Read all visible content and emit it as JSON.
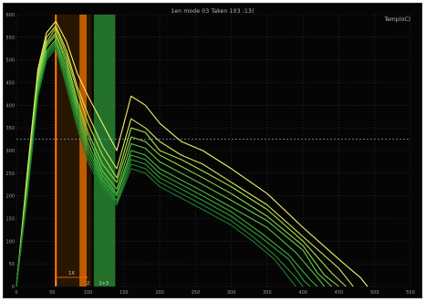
{
  "title": "1en mode 03 Taken 103 :13(",
  "corner_label": "Temp(oC)",
  "colors": {
    "background": "#050505",
    "grid": "#3a3a3a",
    "dashed_line": "#6f7fb0",
    "orange_band": "#ff7a00",
    "dark_band": "#2b1700",
    "green_band": "#2f9e3a",
    "curves": [
      "#f2f26a",
      "#d4e85a",
      "#aee048",
      "#8ed844",
      "#6ccc42",
      "#52c040",
      "#3fb13a",
      "#2f9f36",
      "#248c30",
      "#1f7a2a"
    ]
  },
  "chart_data": {
    "type": "line",
    "xlim": [
      0,
      550
    ],
    "ylim": [
      0,
      600
    ],
    "x_ticks": [
      "0",
      "50",
      "100",
      "150",
      "200",
      "250",
      "300",
      "350",
      "400",
      "450",
      "500",
      "550"
    ],
    "y_ticks": [
      "0",
      "50",
      "100",
      "150",
      "200",
      "250",
      "300",
      "350",
      "400",
      "450",
      "500",
      "550",
      "600"
    ],
    "marker_labels": [
      "1X",
      "1",
      "2",
      "2+3"
    ],
    "reference_level": 325,
    "bands": [
      {
        "x0": 55,
        "x1": 105,
        "color": "dark"
      },
      {
        "x0": 88,
        "x1": 98,
        "color": "orange"
      },
      {
        "x0": 108,
        "x1": 138,
        "color": "green"
      }
    ],
    "series": [
      {
        "x": [
          0,
          15,
          30,
          42,
          55,
          70,
          85,
          100,
          120,
          140,
          160,
          180,
          200,
          230,
          260,
          300,
          350,
          400,
          450,
          480,
          490
        ],
        "values": [
          0,
          250,
          480,
          560,
          585,
          540,
          470,
          420,
          360,
          300,
          420,
          400,
          360,
          320,
          300,
          260,
          205,
          130,
          60,
          20,
          0
        ]
      },
      {
        "x": [
          0,
          15,
          30,
          42,
          55,
          70,
          85,
          100,
          120,
          140,
          160,
          180,
          200,
          230,
          260,
          300,
          350,
          400,
          450,
          470
        ],
        "values": [
          0,
          240,
          470,
          550,
          575,
          520,
          440,
          380,
          310,
          260,
          370,
          350,
          320,
          290,
          270,
          230,
          180,
          110,
          40,
          0
        ]
      },
      {
        "x": [
          0,
          15,
          30,
          42,
          55,
          70,
          85,
          100,
          120,
          140,
          160,
          180,
          200,
          230,
          260,
          300,
          350,
          400,
          440,
          460
        ],
        "values": [
          0,
          230,
          460,
          540,
          570,
          510,
          430,
          360,
          290,
          240,
          350,
          340,
          300,
          280,
          255,
          220,
          170,
          100,
          30,
          0
        ]
      },
      {
        "x": [
          0,
          15,
          30,
          42,
          55,
          70,
          85,
          100,
          120,
          140,
          160,
          180,
          200,
          230,
          260,
          300,
          350,
          400,
          430,
          450
        ],
        "values": [
          0,
          225,
          455,
          535,
          560,
          500,
          410,
          340,
          270,
          230,
          330,
          320,
          290,
          265,
          240,
          205,
          155,
          90,
          25,
          0
        ]
      },
      {
        "x": [
          0,
          15,
          30,
          42,
          55,
          70,
          85,
          100,
          120,
          140,
          160,
          180,
          200,
          230,
          260,
          300,
          350,
          400,
          420,
          440
        ],
        "values": [
          0,
          220,
          450,
          530,
          555,
          490,
          400,
          330,
          255,
          215,
          315,
          305,
          275,
          250,
          225,
          190,
          145,
          80,
          30,
          0
        ]
      },
      {
        "x": [
          0,
          15,
          30,
          42,
          55,
          70,
          85,
          100,
          120,
          140,
          160,
          180,
          200,
          230,
          260,
          300,
          350,
          390,
          420,
          430
        ],
        "values": [
          0,
          215,
          440,
          520,
          545,
          480,
          390,
          315,
          245,
          205,
          300,
          290,
          260,
          235,
          210,
          175,
          130,
          75,
          20,
          0
        ]
      },
      {
        "x": [
          0,
          15,
          30,
          42,
          55,
          70,
          85,
          100,
          120,
          140,
          160,
          180,
          200,
          230,
          260,
          300,
          340,
          380,
          410,
          420
        ],
        "values": [
          0,
          210,
          435,
          515,
          540,
          470,
          380,
          305,
          235,
          200,
          290,
          280,
          250,
          225,
          200,
          165,
          120,
          70,
          15,
          0
        ]
      },
      {
        "x": [
          0,
          15,
          30,
          42,
          55,
          70,
          85,
          100,
          120,
          140,
          160,
          180,
          200,
          230,
          260,
          300,
          340,
          380,
          400,
          410
        ],
        "values": [
          0,
          205,
          430,
          510,
          535,
          460,
          370,
          295,
          228,
          190,
          280,
          270,
          240,
          215,
          190,
          155,
          110,
          60,
          15,
          0
        ]
      },
      {
        "x": [
          0,
          15,
          30,
          42,
          55,
          70,
          85,
          100,
          120,
          140,
          160,
          180,
          200,
          230,
          260,
          300,
          330,
          360,
          390,
          400
        ],
        "values": [
          0,
          200,
          425,
          505,
          530,
          450,
          360,
          285,
          220,
          185,
          270,
          260,
          230,
          205,
          180,
          145,
          110,
          70,
          20,
          0
        ]
      },
      {
        "x": [
          0,
          15,
          30,
          42,
          55,
          70,
          85,
          100,
          120,
          140,
          160,
          180,
          200,
          230,
          260,
          300,
          330,
          360,
          380,
          390
        ],
        "values": [
          0,
          195,
          420,
          500,
          525,
          440,
          350,
          275,
          212,
          180,
          260,
          250,
          220,
          195,
          170,
          135,
          100,
          60,
          20,
          0
        ]
      }
    ]
  }
}
